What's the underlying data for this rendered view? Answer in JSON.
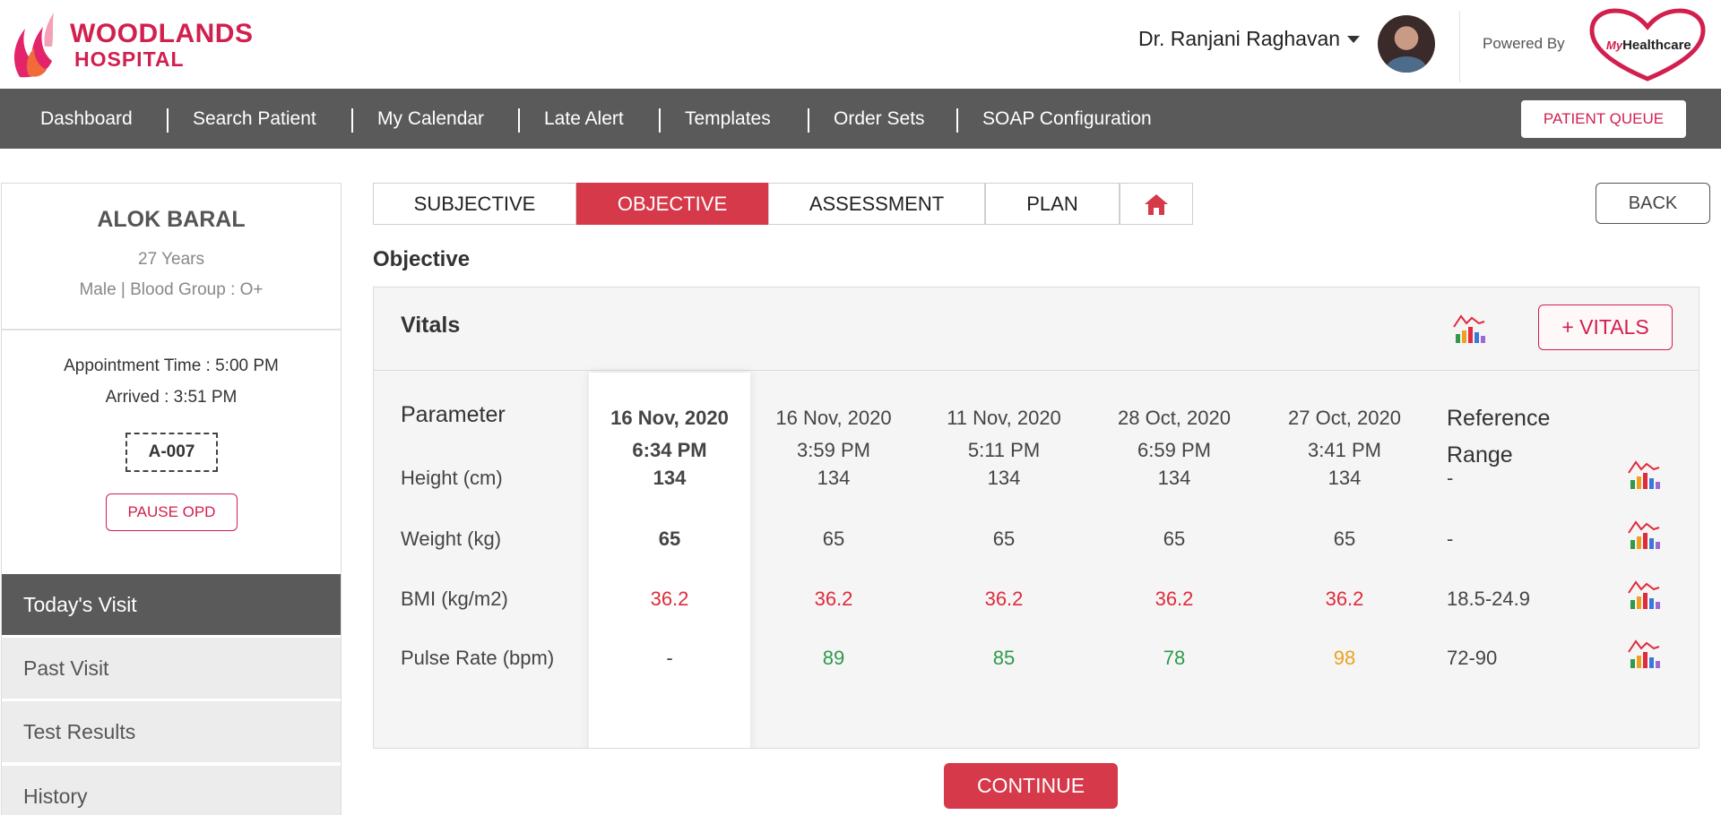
{
  "header": {
    "hospital_line1": "WOODLANDS",
    "hospital_line2": "HOSPITAL",
    "user_name": "Dr. Ranjani Raghavan",
    "powered_by": "Powered By",
    "brand_prefix": "My",
    "brand_name": "Healthcare"
  },
  "nav": {
    "items": [
      "Dashboard",
      "Search Patient",
      "My Calendar",
      "Late Alert",
      "Templates",
      "Order Sets",
      "SOAP Configuration"
    ],
    "patient_queue": "PATIENT QUEUE"
  },
  "patient": {
    "name": "ALOK BARAL",
    "age": "27 Years",
    "meta": "Male | Blood Group : O+",
    "appointment": "Appointment Time : 5:00 PM",
    "arrived": "Arrived : 3:51 PM",
    "token": "A-007",
    "pause_label": "PAUSE OPD"
  },
  "visit_tabs": [
    "Today's Visit",
    "Past Visit",
    "Test Results",
    "History"
  ],
  "soap_tabs": [
    "SUBJECTIVE",
    "OBJECTIVE",
    "ASSESSMENT",
    "PLAN"
  ],
  "back_label": "BACK",
  "section_title": "Objective",
  "vitals": {
    "title": "Vitals",
    "add_label": "+ VITALS",
    "param_header": "Parameter",
    "ref_header_1": "Reference",
    "ref_header_2": "Range",
    "dates": [
      {
        "date": "16 Nov, 2020",
        "time": "6:34 PM"
      },
      {
        "date": "16 Nov, 2020",
        "time": "3:59 PM"
      },
      {
        "date": "11 Nov, 2020",
        "time": "5:11 PM"
      },
      {
        "date": "28 Oct, 2020",
        "time": "6:59 PM"
      },
      {
        "date": "27 Oct, 2020",
        "time": "3:41 PM"
      }
    ],
    "rows": [
      {
        "param": "Height (cm)",
        "values": [
          "134",
          "134",
          "134",
          "134",
          "134"
        ],
        "ref": "-"
      },
      {
        "param": "Weight (kg)",
        "values": [
          "65",
          "65",
          "65",
          "65",
          "65"
        ],
        "ref": "-"
      },
      {
        "param": "BMI (kg/m2)",
        "values": [
          "36.2",
          "36.2",
          "36.2",
          "36.2",
          "36.2"
        ],
        "ref": "18.5-24.9"
      },
      {
        "param": "Pulse Rate (bpm)",
        "values": [
          "-",
          "89",
          "85",
          "78",
          "98"
        ],
        "ref": "72-90"
      }
    ]
  },
  "colors": {
    "brand_red": "#d11f4e",
    "active_tab": "#d6394a",
    "nav_bg": "#5a5a5a",
    "value_normal": "#444444",
    "value_high": "#e02b3a",
    "value_ok": "#2e9a4a",
    "value_warn": "#f0a020"
  },
  "continue_label": "CONTINUE"
}
